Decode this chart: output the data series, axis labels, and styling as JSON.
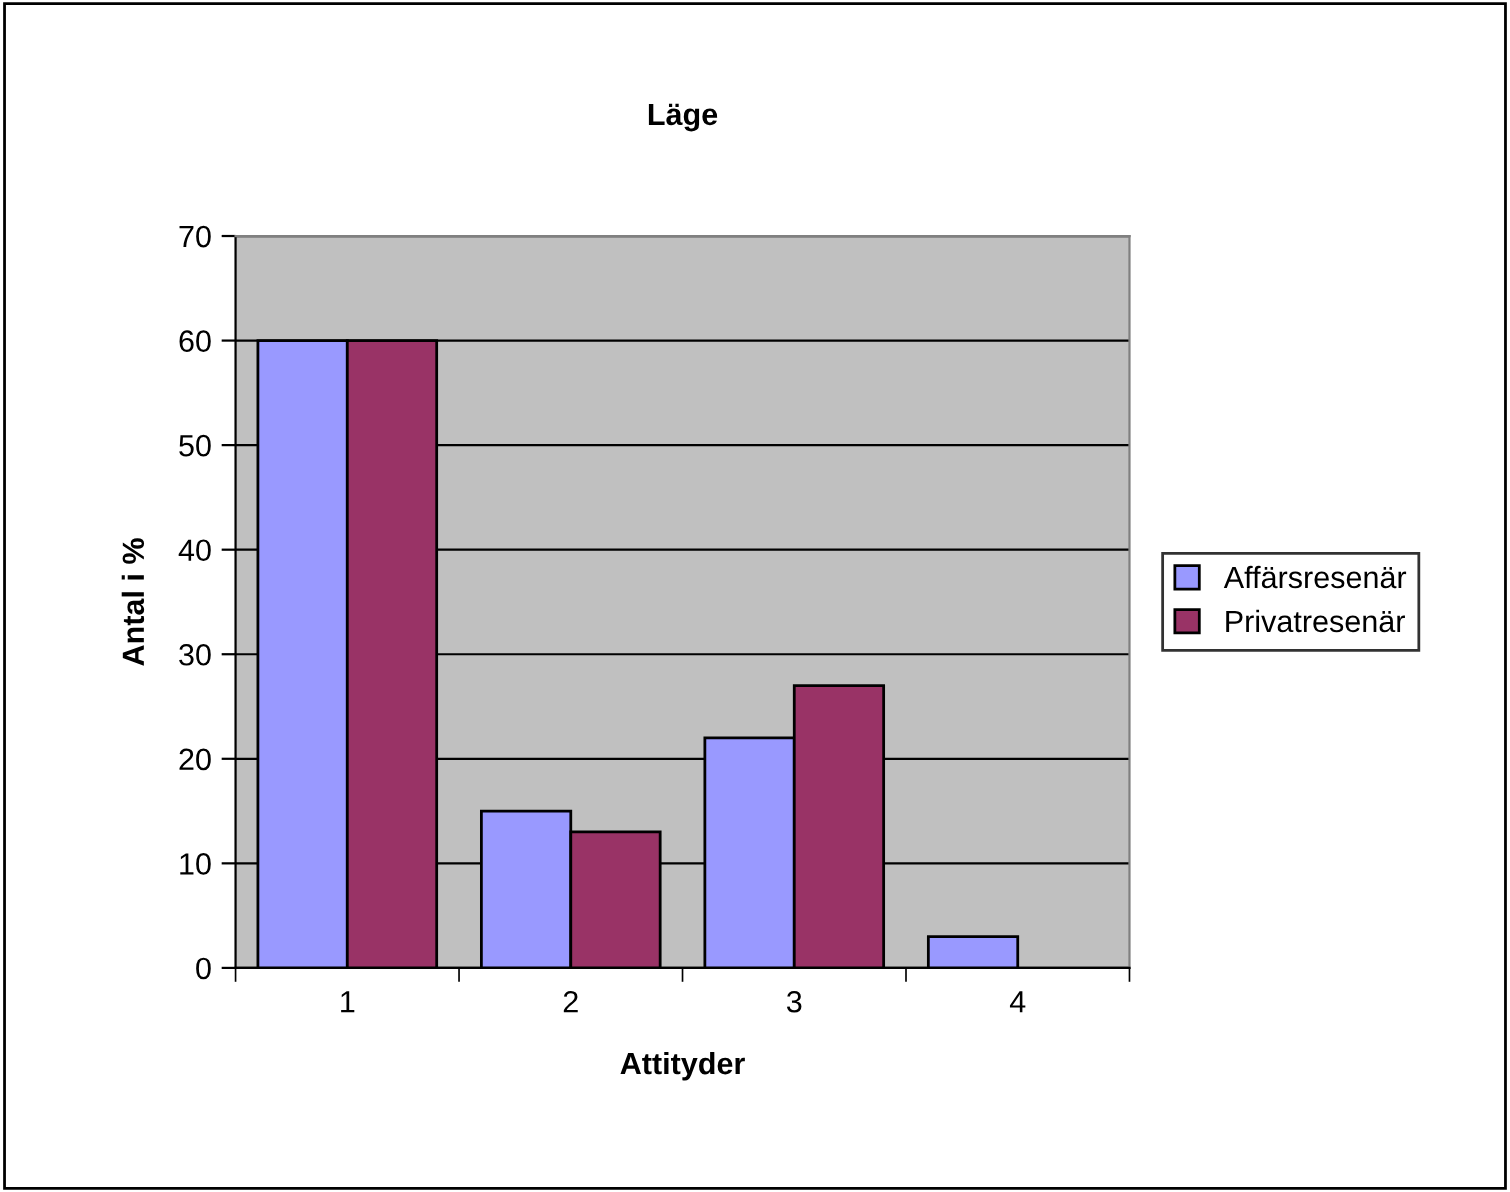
{
  "chart_data": {
    "type": "bar",
    "title": "Läge",
    "xlabel": "Attityder",
    "ylabel": "Antal i %",
    "categories": [
      "1",
      "2",
      "3",
      "4"
    ],
    "series": [
      {
        "name": "Affärsresenär",
        "color": "#9999ff",
        "values": [
          60,
          15,
          22,
          3
        ]
      },
      {
        "name": "Privatresenär",
        "color": "#993366",
        "values": [
          60,
          13,
          27,
          null
        ]
      }
    ],
    "ylim": [
      0,
      70
    ],
    "yticks": [
      0,
      10,
      20,
      30,
      40,
      50,
      60,
      70
    ],
    "grid": "y",
    "legend": "right"
  }
}
